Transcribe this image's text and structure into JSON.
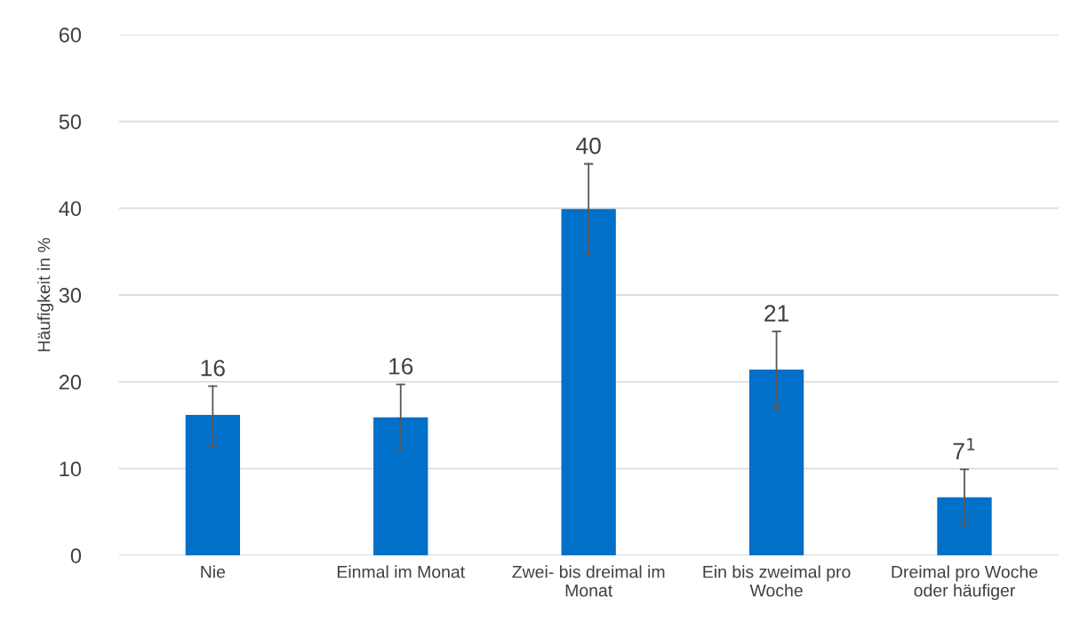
{
  "chart_data": {
    "type": "bar",
    "ylabel": "Häufigkeit in %",
    "categories": [
      "Nie",
      "Einmal im Monat",
      "Zwei- bis dreimal im\nMonat",
      "Ein bis zweimal pro\nWoche",
      "Dreimal pro Woche\noder häufiger"
    ],
    "values": [
      16.2,
      15.9,
      39.9,
      21.4,
      6.7
    ],
    "value_labels": [
      "16",
      "16",
      "40",
      "21",
      "7$^{1}$"
    ],
    "errors": [
      [
        12.6,
        19.5
      ],
      [
        12.2,
        19.7
      ],
      [
        34.6,
        45.1
      ],
      [
        16.9,
        25.8
      ],
      [
        3.6,
        9.9
      ]
    ],
    "color": "#0070c8",
    "ylim": [
      0,
      60
    ],
    "yticks": [
      0,
      10,
      20,
      30,
      40,
      50,
      60
    ],
    "grid": "y",
    "legend": false
  }
}
